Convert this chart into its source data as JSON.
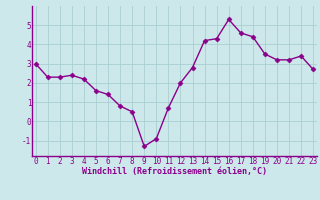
{
  "x": [
    0,
    1,
    2,
    3,
    4,
    5,
    6,
    7,
    8,
    9,
    10,
    11,
    12,
    13,
    14,
    15,
    16,
    17,
    18,
    19,
    20,
    21,
    22,
    23
  ],
  "y": [
    3.0,
    2.3,
    2.3,
    2.4,
    2.2,
    1.6,
    1.4,
    0.8,
    0.5,
    -1.3,
    -0.9,
    0.7,
    2.0,
    2.8,
    4.2,
    4.3,
    5.3,
    4.6,
    4.4,
    3.5,
    3.2,
    3.2,
    3.4,
    2.7
  ],
  "line_color": "#8b008b",
  "marker": "D",
  "marker_size": 2.5,
  "bg_color": "#cce8ea",
  "grid_color": "#aacfd2",
  "xlabel": "Windchill (Refroidissement éolien,°C)",
  "xlabel_color": "#8b008b",
  "xlabel_fontsize": 6.0,
  "tick_color": "#8b008b",
  "tick_fontsize": 5.5,
  "ylim": [
    -1.8,
    6.0
  ],
  "yticks": [
    -1,
    0,
    1,
    2,
    3,
    4,
    5
  ],
  "xticks": [
    0,
    1,
    2,
    3,
    4,
    5,
    6,
    7,
    8,
    9,
    10,
    11,
    12,
    13,
    14,
    15,
    16,
    17,
    18,
    19,
    20,
    21,
    22,
    23
  ],
  "line_width": 1.0,
  "spine_color": "#8b008b",
  "xlim": [
    -0.3,
    23.3
  ]
}
